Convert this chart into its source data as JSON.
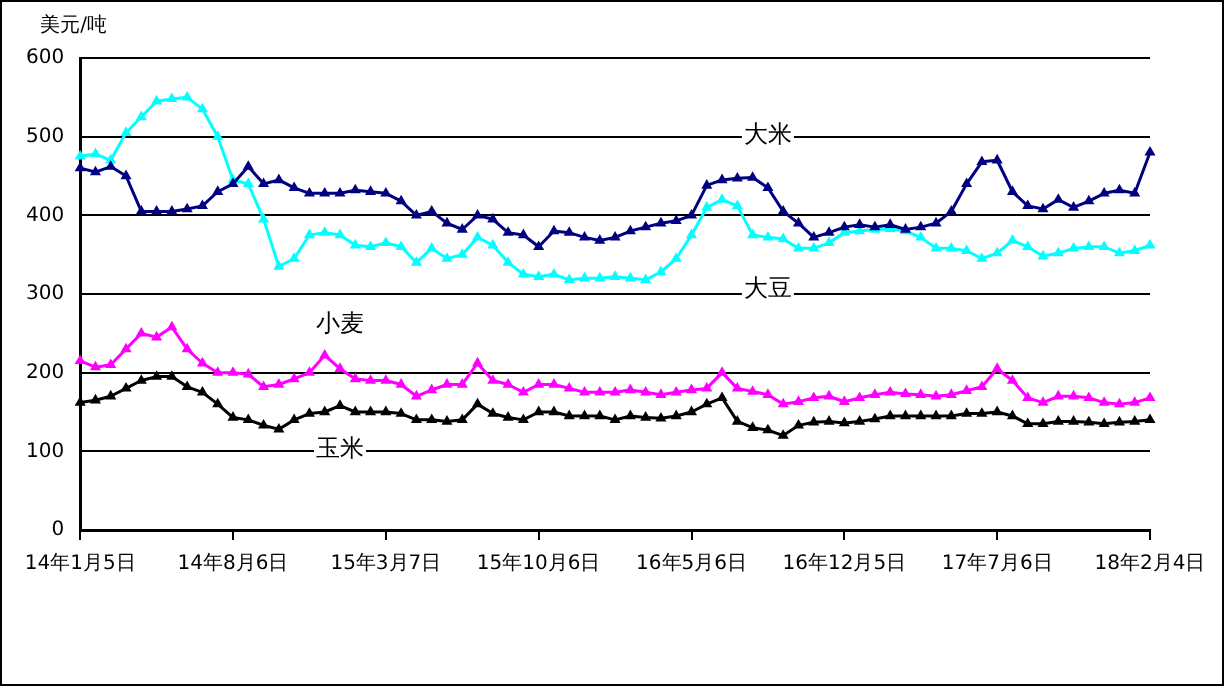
{
  "chart_data": {
    "type": "line",
    "ylabel": "美元/吨",
    "categories": [
      "14年1月5日",
      null,
      null,
      null,
      null,
      null,
      null,
      null,
      null,
      null,
      "14年8月6日",
      null,
      null,
      null,
      null,
      null,
      null,
      null,
      null,
      null,
      "15年3月7日",
      null,
      null,
      null,
      null,
      null,
      null,
      null,
      null,
      null,
      "15年10月6日",
      null,
      null,
      null,
      null,
      null,
      null,
      null,
      null,
      null,
      "16年5月6日",
      null,
      null,
      null,
      null,
      null,
      null,
      null,
      null,
      null,
      "16年12月5日",
      null,
      null,
      null,
      null,
      null,
      null,
      null,
      null,
      null,
      "17年7月6日",
      null,
      null,
      null,
      null,
      null,
      null,
      null,
      null,
      null,
      "18年2月4日"
    ],
    "series": [
      {
        "name": "大米",
        "color": "#000080",
        "values": [
          460,
          455,
          462,
          450,
          405,
          405,
          405,
          408,
          412,
          430,
          440,
          462,
          440,
          445,
          435,
          428,
          428,
          428,
          432,
          430,
          428,
          418,
          400,
          405,
          390,
          382,
          400,
          395,
          378,
          375,
          360,
          380,
          378,
          372,
          368,
          372,
          380,
          385,
          390,
          393,
          400,
          438,
          445,
          447,
          448,
          435,
          405,
          390,
          372,
          378,
          385,
          388,
          385,
          388,
          382,
          385,
          390,
          405,
          440,
          468,
          470,
          430,
          412,
          408,
          420,
          410,
          418,
          428,
          432,
          428,
          480
        ]
      },
      {
        "name": "大豆",
        "color": "#00ffff",
        "values": [
          475,
          478,
          470,
          505,
          525,
          545,
          548,
          550,
          535,
          500,
          445,
          440,
          395,
          335,
          345,
          375,
          378,
          375,
          362,
          360,
          365,
          360,
          340,
          358,
          345,
          350,
          372,
          362,
          340,
          325,
          322,
          325,
          318,
          320,
          320,
          322,
          320,
          318,
          328,
          345,
          375,
          410,
          420,
          412,
          375,
          372,
          370,
          358,
          358,
          365,
          378,
          380,
          382,
          383,
          380,
          372,
          358,
          358,
          355,
          345,
          352,
          368,
          360,
          348,
          352,
          358,
          360,
          360,
          352,
          355,
          362
        ]
      },
      {
        "name": "小麦",
        "color": "#ff00ff",
        "values": [
          215,
          207,
          210,
          230,
          250,
          245,
          258,
          230,
          212,
          200,
          200,
          198,
          182,
          185,
          192,
          200,
          222,
          205,
          192,
          190,
          190,
          185,
          170,
          178,
          185,
          185,
          212,
          190,
          185,
          175,
          185,
          185,
          180,
          175,
          175,
          175,
          178,
          175,
          172,
          175,
          178,
          180,
          200,
          180,
          176,
          172,
          160,
          163,
          168,
          170,
          163,
          168,
          172,
          175,
          173,
          172,
          170,
          172,
          177,
          182,
          205,
          190,
          168,
          162,
          170,
          170,
          168,
          162,
          160,
          162,
          168
        ]
      },
      {
        "name": "玉米",
        "color": "#000000",
        "values": [
          162,
          165,
          170,
          180,
          190,
          195,
          195,
          182,
          175,
          160,
          143,
          140,
          133,
          128,
          140,
          148,
          150,
          158,
          150,
          150,
          150,
          148,
          140,
          140,
          138,
          140,
          160,
          148,
          143,
          140,
          150,
          150,
          145,
          145,
          145,
          140,
          145,
          143,
          142,
          145,
          150,
          160,
          168,
          138,
          130,
          127,
          120,
          133,
          137,
          138,
          136,
          138,
          141,
          145,
          145,
          145,
          145,
          145,
          148,
          148,
          150,
          145,
          135,
          135,
          138,
          138,
          137,
          135,
          137,
          138,
          140
        ]
      }
    ],
    "ylim": [
      0,
      600
    ],
    "yticks": [
      0,
      100,
      200,
      300,
      400,
      500,
      600
    ],
    "grid": "y",
    "marker": "triangle",
    "line_style": "solid",
    "legend": false
  }
}
